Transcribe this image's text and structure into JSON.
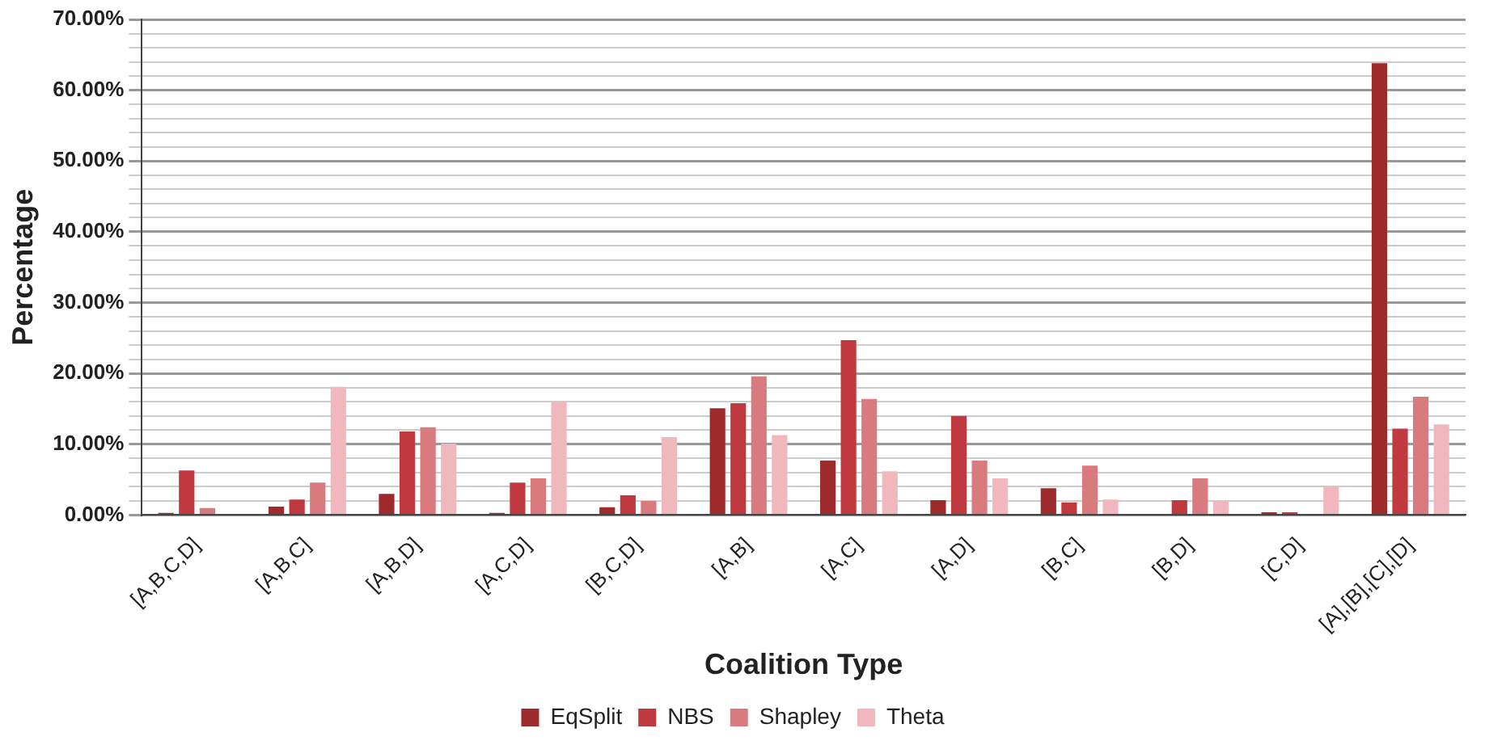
{
  "chart_data": {
    "type": "bar",
    "xlabel": "Coalition Type",
    "ylabel": "Percentage",
    "categories": [
      "[A,B,C,D]",
      "[A,B,C]",
      "[A,B,D]",
      "[A,C,D]",
      "[B,C,D]",
      "[A,B]",
      "[A,C]",
      "[A,D]",
      "[B,C]",
      "[B,D]",
      "[C,D]",
      "[A],[B],[C],[D]"
    ],
    "series": [
      {
        "name": "EqSplit",
        "color": "#9e2a2b",
        "values": [
          0.3,
          1.2,
          3.0,
          0.3,
          1.1,
          15.1,
          7.7,
          2.1,
          3.8,
          0,
          0.4,
          63.8
        ]
      },
      {
        "name": "NBS",
        "color": "#c0393f",
        "values": [
          6.3,
          2.2,
          11.8,
          4.6,
          2.8,
          15.8,
          24.7,
          14.0,
          1.8,
          2.1,
          0.4,
          12.2
        ]
      },
      {
        "name": "Shapley",
        "color": "#d97a7f",
        "values": [
          1.0,
          4.6,
          12.4,
          5.2,
          2.0,
          19.6,
          16.4,
          7.7,
          7.0,
          5.2,
          0,
          16.7
        ]
      },
      {
        "name": "Theta",
        "color": "#f0b8bc",
        "values": [
          0,
          18.1,
          10.1,
          16.0,
          11.0,
          11.3,
          6.2,
          5.2,
          2.2,
          2.0,
          4.0,
          12.8
        ]
      }
    ],
    "ylim": [
      0,
      70
    ],
    "yticks": [
      {
        "value": 0,
        "label": "0.00%"
      },
      {
        "value": 2,
        "label": null
      },
      {
        "value": 4,
        "label": null
      },
      {
        "value": 6,
        "label": null
      },
      {
        "value": 8,
        "label": null
      },
      {
        "value": 10,
        "label": "10.00%"
      },
      {
        "value": 12,
        "label": null
      },
      {
        "value": 14,
        "label": null
      },
      {
        "value": 16,
        "label": null
      },
      {
        "value": 18,
        "label": null
      },
      {
        "value": 20,
        "label": "20.00%"
      },
      {
        "value": 22,
        "label": null
      },
      {
        "value": 24,
        "label": null
      },
      {
        "value": 26,
        "label": null
      },
      {
        "value": 28,
        "label": null
      },
      {
        "value": 30,
        "label": "30.00%"
      },
      {
        "value": 32,
        "label": null
      },
      {
        "value": 34,
        "label": null
      },
      {
        "value": 36,
        "label": null
      },
      {
        "value": 38,
        "label": null
      },
      {
        "value": 40,
        "label": "40.00%"
      },
      {
        "value": 42,
        "label": null
      },
      {
        "value": 44,
        "label": null
      },
      {
        "value": 46,
        "label": null
      },
      {
        "value": 48,
        "label": null
      },
      {
        "value": 50,
        "label": "50.00%"
      },
      {
        "value": 52,
        "label": null
      },
      {
        "value": 54,
        "label": null
      },
      {
        "value": 56,
        "label": null
      },
      {
        "value": 58,
        "label": null
      },
      {
        "value": 60,
        "label": "60.00%"
      },
      {
        "value": 62,
        "label": null
      },
      {
        "value": 64,
        "label": null
      },
      {
        "value": 66,
        "label": null
      },
      {
        "value": 68,
        "label": null
      },
      {
        "value": 70,
        "label": "70.00%"
      }
    ],
    "grid": "y",
    "legend": "bottom"
  }
}
